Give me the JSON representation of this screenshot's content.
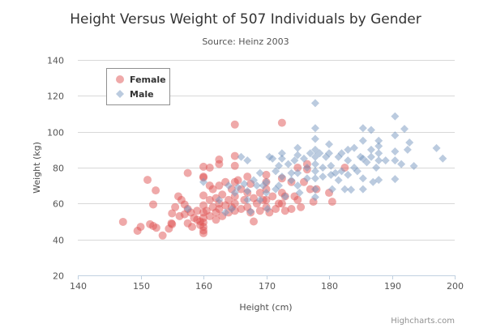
{
  "chart_data": {
    "type": "scatter",
    "title": "Height Versus Weight of 507 Individuals by Gender",
    "subtitle": "Source: Heinz 2003",
    "xlabel": "Height (cm)",
    "ylabel": "Weight (kg)",
    "xlim": [
      140,
      200
    ],
    "ylim": [
      20,
      140
    ],
    "xticks": [
      "140",
      "150",
      "160",
      "170",
      "180",
      "190",
      "200"
    ],
    "yticks": [
      "20",
      "40",
      "60",
      "80",
      "100",
      "120",
      "140"
    ],
    "grid": "horizontal",
    "legend_placement": "top-left",
    "credits": "Highcharts.com",
    "series": [
      {
        "name": "Female",
        "marker": "circle",
        "color": "#df5353",
        "points": [
          [
            147.2,
            49.8
          ],
          [
            149.5,
            44.8
          ],
          [
            150.0,
            47.0
          ],
          [
            151.1,
            73.2
          ],
          [
            151.5,
            48.5
          ],
          [
            152.0,
            59.5
          ],
          [
            152.4,
            67.3
          ],
          [
            152.5,
            46.5
          ],
          [
            152.0,
            47.5
          ],
          [
            153.5,
            42.2
          ],
          [
            154.5,
            46.0
          ],
          [
            154.9,
            49.0
          ],
          [
            155.0,
            54.5
          ],
          [
            155.0,
            48.5
          ],
          [
            155.5,
            58.0
          ],
          [
            156.0,
            64.0
          ],
          [
            156.5,
            62.0
          ],
          [
            156.2,
            53.0
          ],
          [
            157.0,
            59.5
          ],
          [
            157.5,
            77.0
          ],
          [
            157.5,
            57.0
          ],
          [
            157.5,
            49.0
          ],
          [
            157.0,
            54.0
          ],
          [
            158.0,
            55.0
          ],
          [
            158.5,
            52.0
          ],
          [
            158.2,
            47.0
          ],
          [
            159.0,
            51.0
          ],
          [
            159.5,
            50.0
          ],
          [
            159.0,
            56.0
          ],
          [
            159.5,
            48.0
          ],
          [
            160.0,
            80.5
          ],
          [
            160.0,
            75.0
          ],
          [
            160.0,
            74.5
          ],
          [
            160.0,
            64.5
          ],
          [
            160.0,
            59.0
          ],
          [
            160.0,
            55.0
          ],
          [
            160.0,
            52.0
          ],
          [
            160.0,
            49.5
          ],
          [
            160.0,
            47.0
          ],
          [
            160.0,
            45.0
          ],
          [
            160.0,
            43.5
          ],
          [
            160.5,
            56.0
          ],
          [
            161.0,
            80.0
          ],
          [
            161.0,
            70.0
          ],
          [
            161.0,
            62.0
          ],
          [
            161.0,
            53.0
          ],
          [
            161.5,
            68.0
          ],
          [
            161.5,
            58.0
          ],
          [
            162.0,
            63.0
          ],
          [
            162.0,
            55.0
          ],
          [
            162.0,
            51.0
          ],
          [
            162.5,
            82.0
          ],
          [
            162.5,
            84.5
          ],
          [
            162.5,
            70.0
          ],
          [
            162.5,
            60.0
          ],
          [
            162.5,
            57.0
          ],
          [
            163.0,
            65.0
          ],
          [
            163.0,
            53.0
          ],
          [
            163.5,
            72.0
          ],
          [
            163.5,
            59.0
          ],
          [
            164.0,
            62.0
          ],
          [
            164.0,
            55.0
          ],
          [
            164.5,
            68.0
          ],
          [
            164.5,
            58.0
          ],
          [
            165.0,
            104.0
          ],
          [
            165.0,
            86.5
          ],
          [
            165.0,
            81.0
          ],
          [
            165.0,
            72.0
          ],
          [
            165.0,
            64.0
          ],
          [
            165.0,
            60.0
          ],
          [
            165.0,
            56.0
          ],
          [
            165.5,
            73.0
          ],
          [
            166.0,
            68.0
          ],
          [
            166.0,
            57.0
          ],
          [
            166.5,
            62.0
          ],
          [
            167.0,
            75.0
          ],
          [
            167.0,
            66.0
          ],
          [
            167.0,
            58.0
          ],
          [
            167.5,
            71.0
          ],
          [
            167.5,
            55.0
          ],
          [
            168.0,
            63.0
          ],
          [
            168.0,
            50.0
          ],
          [
            168.5,
            60.0
          ],
          [
            169.0,
            66.0
          ],
          [
            169.0,
            56.0
          ],
          [
            169.5,
            62.0
          ],
          [
            170.0,
            76.0
          ],
          [
            170.0,
            72.0
          ],
          [
            170.0,
            68.0
          ],
          [
            170.0,
            62.0
          ],
          [
            170.0,
            58.0
          ],
          [
            170.5,
            55.0
          ],
          [
            171.0,
            64.0
          ],
          [
            171.5,
            57.0
          ],
          [
            172.0,
            60.0
          ],
          [
            172.5,
            105.0
          ],
          [
            172.5,
            74.0
          ],
          [
            172.5,
            66.0
          ],
          [
            172.5,
            60.0
          ],
          [
            173.0,
            56.0
          ],
          [
            173.0,
            64.0
          ],
          [
            174.0,
            72.0
          ],
          [
            174.0,
            57.0
          ],
          [
            174.5,
            64.0
          ],
          [
            175.0,
            80.0
          ],
          [
            175.0,
            62.0
          ],
          [
            175.5,
            58.0
          ],
          [
            176.0,
            72.0
          ],
          [
            176.5,
            82.0
          ],
          [
            176.5,
            79.0
          ],
          [
            177.0,
            68.0
          ],
          [
            177.5,
            61.0
          ],
          [
            178.0,
            68.0
          ],
          [
            180.0,
            66.0
          ],
          [
            180.5,
            61.0
          ],
          [
            182.5,
            80.0
          ]
        ]
      },
      {
        "name": "Male",
        "marker": "diamond",
        "color": "#7798bf",
        "points": [
          [
            157.5,
            57.0
          ],
          [
            160.0,
            72.0
          ],
          [
            162.5,
            62.0
          ],
          [
            163.5,
            55.0
          ],
          [
            164.0,
            70.0
          ],
          [
            164.5,
            57.0
          ],
          [
            165.0,
            66.0
          ],
          [
            165.5,
            69.0
          ],
          [
            166.0,
            86.0
          ],
          [
            166.5,
            71.0
          ],
          [
            167.0,
            84.0
          ],
          [
            167.0,
            67.0
          ],
          [
            167.0,
            62.0
          ],
          [
            167.5,
            55.5
          ],
          [
            168.0,
            73.0
          ],
          [
            168.5,
            70.0
          ],
          [
            169.0,
            77.0
          ],
          [
            169.0,
            62.0
          ],
          [
            169.5,
            70.0
          ],
          [
            170.0,
            72.0
          ],
          [
            170.0,
            66.0
          ],
          [
            170.2,
            57.0
          ],
          [
            170.5,
            86.0
          ],
          [
            171.0,
            85.0
          ],
          [
            171.5,
            78.0
          ],
          [
            171.5,
            68.0
          ],
          [
            172.0,
            81.0
          ],
          [
            172.0,
            70.0
          ],
          [
            172.5,
            88.0
          ],
          [
            172.5,
            85.0
          ],
          [
            172.5,
            75.0
          ],
          [
            173.0,
            64.0
          ],
          [
            173.5,
            82.0
          ],
          [
            174.0,
            77.0
          ],
          [
            174.0,
            73.0
          ],
          [
            174.5,
            84.0
          ],
          [
            175.0,
            91.0
          ],
          [
            175.0,
            87.0
          ],
          [
            175.0,
            77.0
          ],
          [
            175.0,
            70.0
          ],
          [
            175.3,
            66.0
          ],
          [
            176.0,
            85.0
          ],
          [
            176.5,
            80.0
          ],
          [
            176.5,
            74.0
          ],
          [
            177.0,
            88.0
          ],
          [
            177.8,
            115.9
          ],
          [
            177.8,
            102.0
          ],
          [
            177.8,
            96.0
          ],
          [
            177.8,
            90.0
          ],
          [
            177.8,
            86.0
          ],
          [
            177.8,
            82.0
          ],
          [
            177.8,
            78.0
          ],
          [
            177.8,
            74.0
          ],
          [
            177.8,
            68.0
          ],
          [
            177.8,
            63.6
          ],
          [
            178.5,
            88.0
          ],
          [
            179.0,
            80.0
          ],
          [
            179.0,
            75.0
          ],
          [
            179.5,
            86.0
          ],
          [
            180.0,
            93.0
          ],
          [
            180.0,
            88.0
          ],
          [
            180.3,
            81.0
          ],
          [
            180.3,
            76.0
          ],
          [
            180.5,
            68.0
          ],
          [
            181.0,
            77.0
          ],
          [
            181.5,
            86.0
          ],
          [
            181.5,
            73.0
          ],
          [
            182.0,
            88.0
          ],
          [
            182.0,
            78.0
          ],
          [
            182.5,
            68.0
          ],
          [
            183.0,
            90.0
          ],
          [
            183.0,
            84.0
          ],
          [
            183.0,
            76.0
          ],
          [
            183.5,
            67.7
          ],
          [
            184.0,
            91.0
          ],
          [
            184.0,
            80.0
          ],
          [
            184.5,
            78.0
          ],
          [
            185.0,
            86.0
          ],
          [
            185.4,
            102.0
          ],
          [
            185.4,
            95.0
          ],
          [
            185.4,
            85.0
          ],
          [
            185.4,
            74.0
          ],
          [
            185.4,
            68.0
          ],
          [
            186.0,
            83.0
          ],
          [
            186.7,
            101.0
          ],
          [
            186.7,
            90.0
          ],
          [
            186.7,
            86.0
          ],
          [
            187.0,
            72.0
          ],
          [
            187.5,
            80.0
          ],
          [
            187.9,
            95.0
          ],
          [
            187.9,
            92.0
          ],
          [
            187.9,
            88.0
          ],
          [
            187.9,
            84.0
          ],
          [
            187.9,
            73.2
          ],
          [
            189.0,
            84.0
          ],
          [
            190.5,
            108.6
          ],
          [
            190.5,
            98.0
          ],
          [
            190.5,
            89.0
          ],
          [
            190.5,
            84.0
          ],
          [
            190.5,
            73.6
          ],
          [
            191.5,
            82.0
          ],
          [
            192.0,
            101.6
          ],
          [
            192.5,
            90.0
          ],
          [
            192.8,
            94.0
          ],
          [
            193.5,
            80.9
          ],
          [
            197.1,
            90.9
          ],
          [
            198.1,
            85.1
          ]
        ]
      }
    ]
  }
}
